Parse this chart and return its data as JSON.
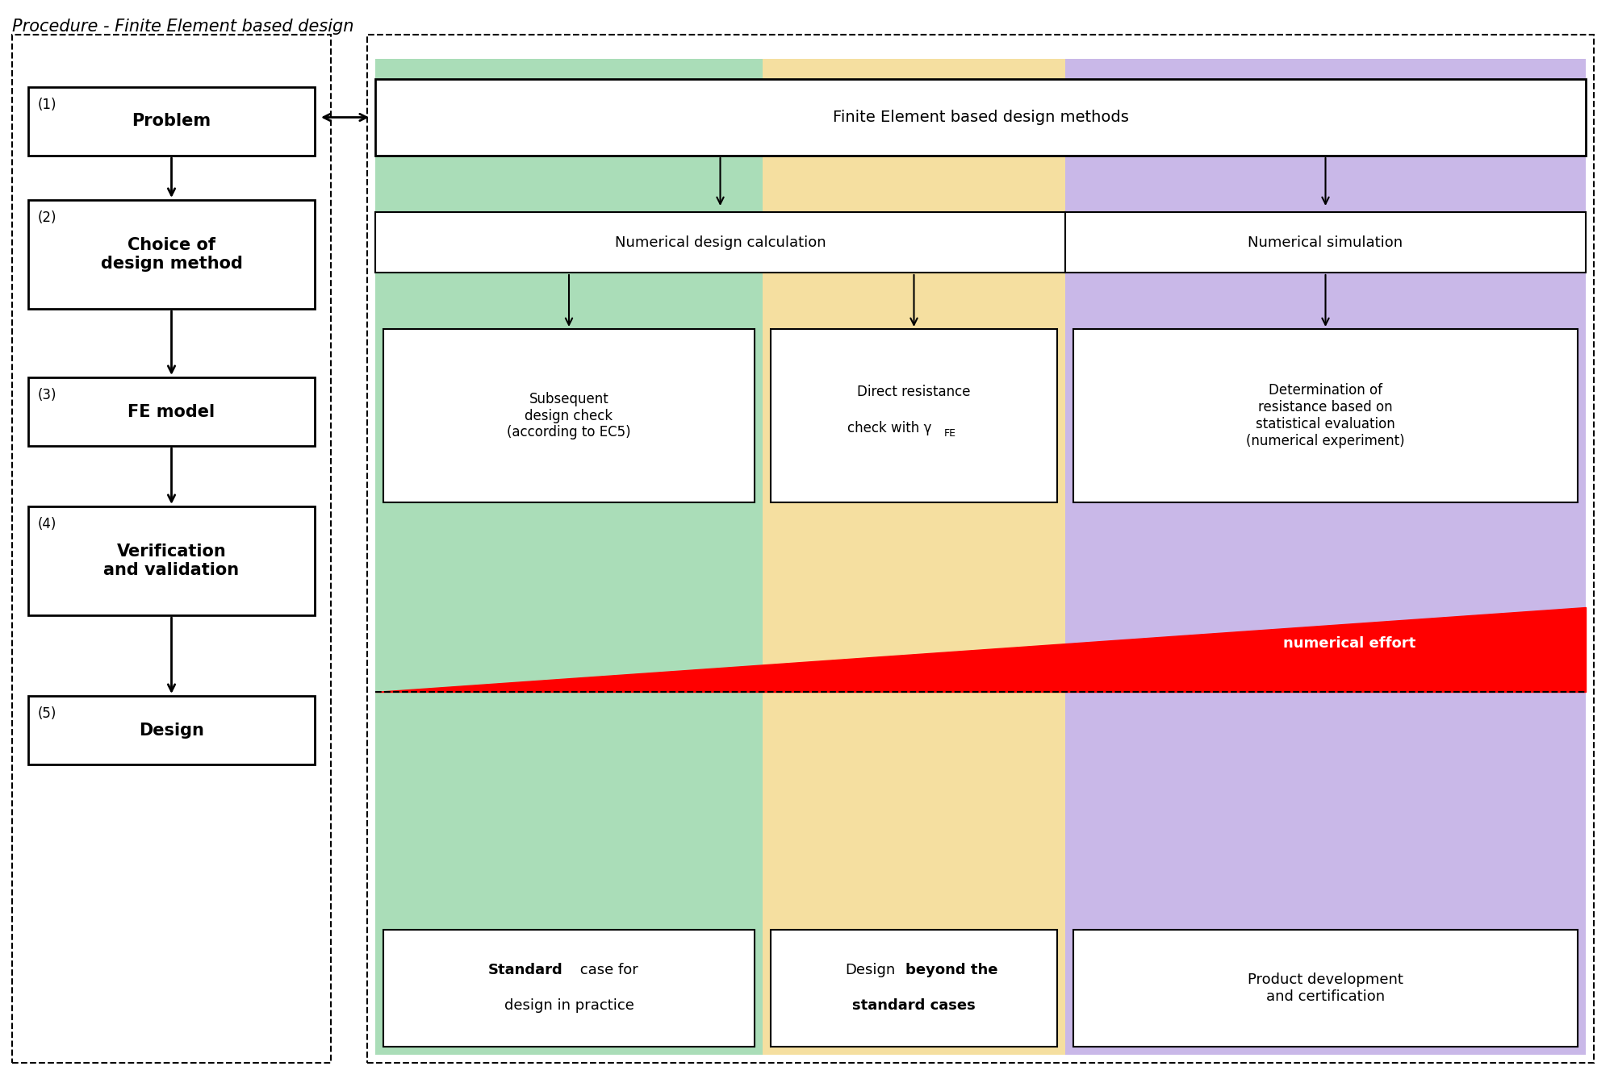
{
  "title": "Procedure - Finite Element based design",
  "left_boxes": [
    {
      "num": "(1)",
      "text": "Problem"
    },
    {
      "num": "(2)",
      "text": "Choice of\ndesign method"
    },
    {
      "num": "(3)",
      "text": "FE model"
    },
    {
      "num": "(4)",
      "text": "Verification\nand validation"
    },
    {
      "num": "(5)",
      "text": "Design"
    }
  ],
  "right_top_box": "Finite Element based design methods",
  "col1_color": "#aaddb8",
  "col2_color": "#f5dfa0",
  "col3_color": "#c9b8e8",
  "red_arrow_label": "numerical effort",
  "background_color": "#ffffff"
}
